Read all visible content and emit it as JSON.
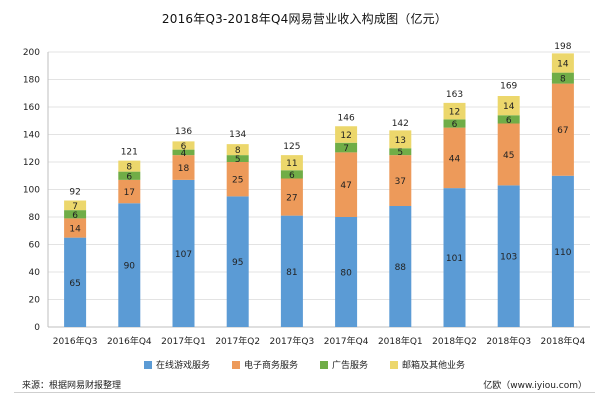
{
  "chart_data": {
    "type": "bar",
    "stacked": true,
    "title": "2016年Q3-2018年Q4网易营业收入构成图（亿元）",
    "categories": [
      "2016年Q3",
      "2016年Q4",
      "2017年Q1",
      "2017年Q2",
      "2017年Q3",
      "2017年Q4",
      "2018年Q1",
      "2018年Q2",
      "2018年Q3",
      "2018年Q4"
    ],
    "series": [
      {
        "name": "在线游戏服务",
        "color": "#5b9bd5",
        "values": [
          65,
          90,
          107,
          95,
          81,
          80,
          88,
          101,
          103,
          110
        ]
      },
      {
        "name": "电子商务服务",
        "color": "#ed9a5a",
        "values": [
          14,
          17,
          18,
          25,
          27,
          47,
          37,
          44,
          45,
          67
        ]
      },
      {
        "name": "广告服务",
        "color": "#70ad47",
        "values": [
          6,
          6,
          4,
          5,
          6,
          7,
          5,
          6,
          6,
          8
        ]
      },
      {
        "name": "邮箱及其他业务",
        "color": "#ecd76c",
        "values": [
          7,
          8,
          6,
          8,
          11,
          12,
          13,
          12,
          14,
          14
        ]
      }
    ],
    "totals": [
      92,
      121,
      136,
      134,
      125,
      146,
      142,
      163,
      169,
      198
    ],
    "ylim": [
      0,
      200
    ],
    "yticks": [
      0,
      20,
      40,
      60,
      80,
      100,
      120,
      140,
      160,
      180,
      200
    ],
    "grid": true,
    "legend_position": "bottom"
  },
  "footer": {
    "source": "来源：根据网易财报整理",
    "credit": "亿欧（www.iyiou.com）"
  }
}
